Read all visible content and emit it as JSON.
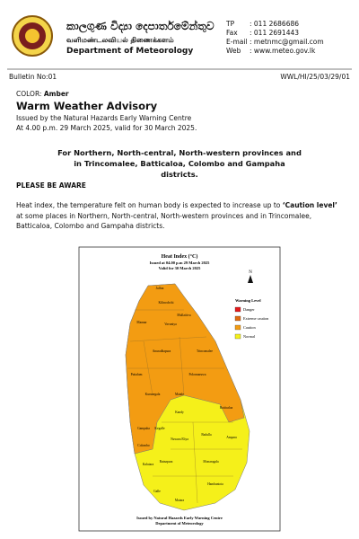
{
  "header": {
    "sinhala": "කාලගුණ විද්‍යා දෙපාර්තමේන්තුව",
    "tamil": "வளிமண்டலவியல் திணைக்களம்",
    "department": "Department of Meteorology",
    "contacts": [
      {
        "label": "TP",
        "value": ": 011 2686686"
      },
      {
        "label": "Fax",
        "value": ": 011 2691443"
      },
      {
        "label": "E-mail",
        "value": ": metnmc@gmail.com"
      },
      {
        "label": "Web",
        "value": ": www.meteo.gov.lk"
      }
    ]
  },
  "bulletin": {
    "number": "Bulletin No:01",
    "reference": "WWL/HI/25/03/29/01"
  },
  "advisory": {
    "color_label": "COLOR:",
    "color_value": "Amber",
    "title": "Warm Weather Advisory",
    "issued_by": "Issued by the Natural Hazards Early Warning Centre",
    "issued_at": "At 4.00 p.m. 29 March 2025, valid for 30 March 2025.",
    "regions": "For Northern, North-central, North-western provinces and in Trincomalee, Batticaloa, Colombo and Gampaha districts.",
    "aware": "PLEASE BE AWARE",
    "body": {
      "before": "Heat index, the temperature felt on human body is expected to increase up to",
      "bold": "‘Caution level’",
      "after": "at some places in Northern, North-central, North-western provinces and in Trincomalee, Batticaloa, Colombo and Gampaha districts."
    }
  },
  "map": {
    "title": "Heat Index (°C)",
    "issued": "Issued at 04.00 p.m 29 March 2025",
    "valid": "Valid for 30 March 2025",
    "north": "N",
    "legend_title": "Warning Level",
    "legend": [
      {
        "label": "Danger",
        "color": "#e3191c"
      },
      {
        "label": "Extreme caution",
        "color": "#e06a10"
      },
      {
        "label": "Caution",
        "color": "#f39c12"
      },
      {
        "label": "Normal",
        "color": "#f5f01a"
      }
    ],
    "districts": [
      "Jaffna",
      "Kilinochchi",
      "Mullaitivu",
      "Mannar",
      "Vavuniya",
      "Anuradhapura",
      "Trincomalee",
      "Puttalam",
      "Polonnaruwa",
      "Kurunegala",
      "Matale",
      "Batticaloa",
      "Gampaha",
      "Kandy",
      "Kegalle",
      "Colombo",
      "Nuwara Eliya",
      "Badulla",
      "Ampara",
      "Ratnapura",
      "Kalutara",
      "Monaragala",
      "Galle",
      "Matara",
      "Hambantota"
    ],
    "footer1": "Issued by Natural Hazards Early Warning Centre",
    "footer2": "Department of Meteorology"
  }
}
